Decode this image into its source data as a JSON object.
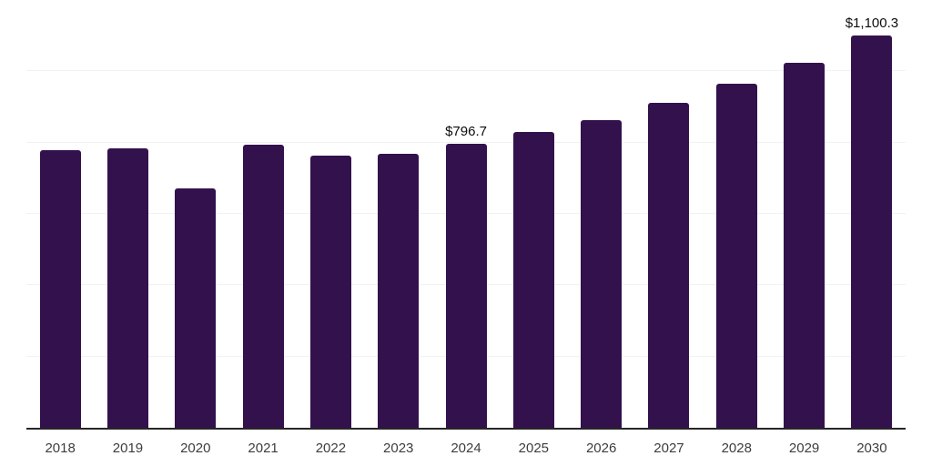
{
  "chart_data": {
    "type": "bar",
    "title": "",
    "xlabel": "",
    "ylabel": "",
    "categories": [
      "2018",
      "2019",
      "2020",
      "2021",
      "2022",
      "2023",
      "2024",
      "2025",
      "2026",
      "2027",
      "2028",
      "2029",
      "2030"
    ],
    "values": [
      780,
      785,
      671,
      794,
      763,
      768,
      796.7,
      829,
      864,
      911,
      964,
      1023,
      1100.3
    ],
    "data_labels": [
      "",
      "",
      "",
      "",
      "",
      "",
      "$796.7",
      "",
      "",
      "",
      "",
      "",
      "$1,100.3"
    ],
    "ylim": [
      0,
      1200
    ],
    "gridline_step": 200,
    "grid": true,
    "legend_position": "none",
    "colors": {
      "bar": "#33114d",
      "axis_line": "#262626",
      "gridline": "#f2f2f2",
      "tick_label": "#3d3d3d",
      "data_label": "#0d0d0d",
      "background": "#ffffff"
    }
  }
}
